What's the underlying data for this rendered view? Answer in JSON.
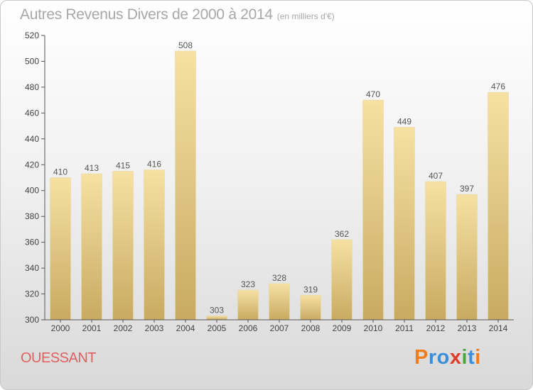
{
  "chart_data": {
    "type": "bar",
    "title": "Autres Revenus Divers de 2000 à 2014",
    "subtitle": "(en milliers d'€)",
    "categories": [
      "2000",
      "2001",
      "2002",
      "2003",
      "2004",
      "2005",
      "2006",
      "2007",
      "2008",
      "2009",
      "2010",
      "2011",
      "2012",
      "2013",
      "2014"
    ],
    "values": [
      410,
      413,
      415,
      416,
      508,
      303,
      323,
      328,
      319,
      362,
      470,
      449,
      407,
      397,
      476
    ],
    "ylim": [
      300,
      520
    ],
    "yticks": [
      300,
      320,
      340,
      360,
      380,
      400,
      420,
      440,
      460,
      480,
      500,
      520
    ],
    "grid": false,
    "bar_color_top": "#f6e1a3",
    "bar_color_bottom": "#c8aa62"
  },
  "footer": {
    "commune": "OUESSANT",
    "logo": {
      "text": "Proxiti",
      "letters": [
        {
          "char": "P",
          "color": "#f07d1a"
        },
        {
          "char": "r",
          "color": "#3a8fd8"
        },
        {
          "char": "o",
          "color": "#3a8fd8"
        },
        {
          "char": "x",
          "color": "#e03c2b"
        },
        {
          "char": "i",
          "color": "#4aa83a"
        },
        {
          "char": "t",
          "color": "#3a8fd8"
        },
        {
          "char": "i",
          "color": "#f07d1a"
        }
      ]
    }
  }
}
